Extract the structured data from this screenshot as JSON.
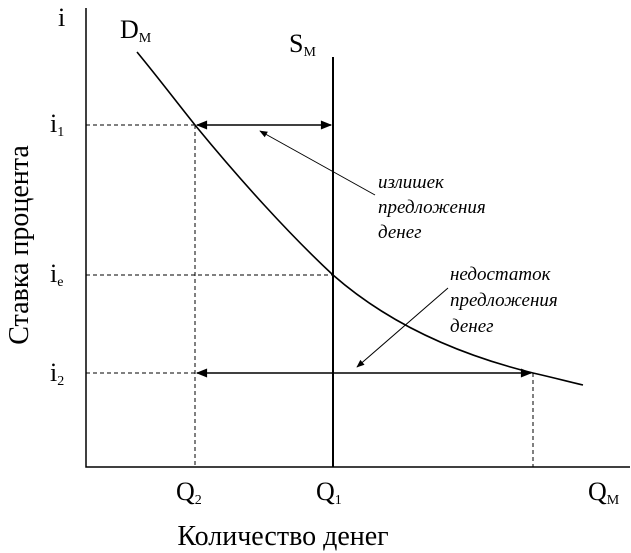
{
  "axes": {
    "y_symbol": "i",
    "y_title": "Ставка процента",
    "x_title": "Количество денег"
  },
  "curves": {
    "demand": {
      "symbol": "D",
      "subscript": "M"
    },
    "supply": {
      "symbol": "S",
      "subscript": "M"
    }
  },
  "y_levels": [
    {
      "symbol": "i",
      "subscript": "1"
    },
    {
      "symbol": "i",
      "subscript": "e"
    },
    {
      "symbol": "i",
      "subscript": "2"
    }
  ],
  "x_levels": [
    {
      "symbol": "Q",
      "subscript": "2"
    },
    {
      "symbol": "Q",
      "subscript": "1"
    },
    {
      "symbol": "Q",
      "subscript": "M"
    }
  ],
  "notes": {
    "surplus": [
      "излишек",
      "предложения",
      "денег"
    ],
    "shortage": [
      "недостаток",
      "предложения",
      "денег"
    ]
  }
}
